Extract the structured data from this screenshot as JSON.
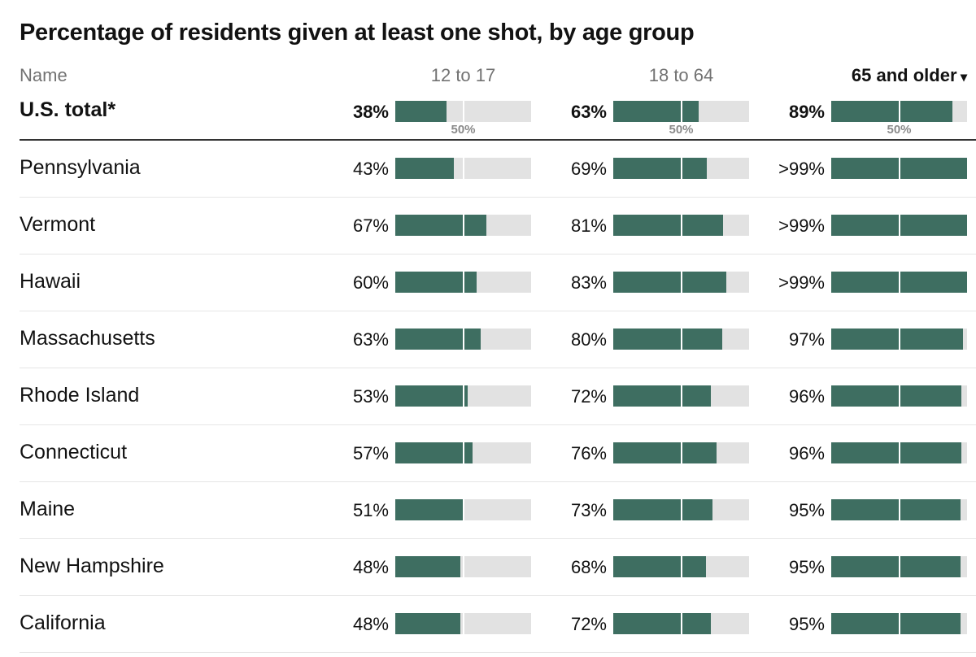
{
  "title": "Percentage of residents given at least one shot, by age group",
  "header": {
    "name_label": "Name"
  },
  "sort_arrow": "▾",
  "colors": {
    "fill": "#3e6e61",
    "track": "#e2e2e2",
    "divider": "#ffffff"
  },
  "chart_data": {
    "type": "bar",
    "title": "Percentage of residents given at least one shot, by age group",
    "series": [
      {
        "name": "12 to 17"
      },
      {
        "name": "18 to 64"
      },
      {
        "name": "65 and older",
        "sorted": true
      }
    ],
    "reference_label": "50%",
    "reference_value": 50,
    "xlim": [
      0,
      100
    ],
    "rows": [
      {
        "name": "U.S. total*",
        "total": true,
        "values": [
          38,
          63,
          89
        ],
        "labels": [
          "38%",
          "63%",
          "89%"
        ]
      },
      {
        "name": "Pennsylvania",
        "values": [
          43,
          69,
          100
        ],
        "labels": [
          "43%",
          "69%",
          ">99%"
        ]
      },
      {
        "name": "Vermont",
        "values": [
          67,
          81,
          100
        ],
        "labels": [
          "67%",
          "81%",
          ">99%"
        ]
      },
      {
        "name": "Hawaii",
        "values": [
          60,
          83,
          100
        ],
        "labels": [
          "60%",
          "83%",
          ">99%"
        ]
      },
      {
        "name": "Massachusetts",
        "values": [
          63,
          80,
          97
        ],
        "labels": [
          "63%",
          "80%",
          "97%"
        ]
      },
      {
        "name": "Rhode Island",
        "values": [
          53,
          72,
          96
        ],
        "labels": [
          "53%",
          "72%",
          "96%"
        ]
      },
      {
        "name": "Connecticut",
        "values": [
          57,
          76,
          96
        ],
        "labels": [
          "57%",
          "76%",
          "96%"
        ]
      },
      {
        "name": "Maine",
        "values": [
          51,
          73,
          95
        ],
        "labels": [
          "51%",
          "73%",
          "95%"
        ]
      },
      {
        "name": "New Hampshire",
        "values": [
          48,
          68,
          95
        ],
        "labels": [
          "48%",
          "68%",
          "95%"
        ]
      },
      {
        "name": "California",
        "values": [
          48,
          72,
          95
        ],
        "labels": [
          "48%",
          "72%",
          "95%"
        ]
      }
    ]
  }
}
